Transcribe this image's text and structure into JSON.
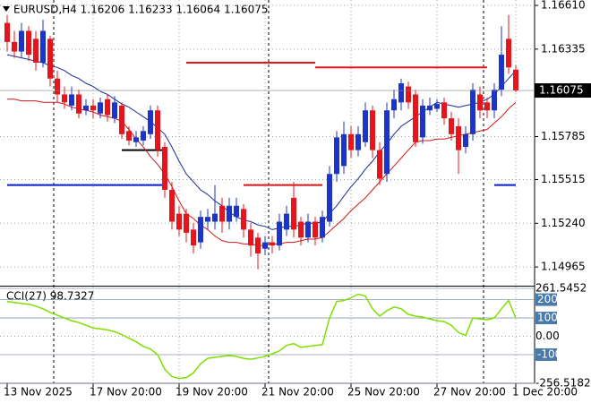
{
  "chart_data": [
    {
      "type": "candlestick",
      "title": "EURUSD,H4  1.16206 1.16233 1.16064 1.16075",
      "categories": [
        "13 Nov 2025",
        null,
        null,
        null,
        null,
        null,
        null,
        null,
        null,
        null,
        null,
        null,
        "17 Nov 20:00",
        null,
        null,
        null,
        null,
        null,
        null,
        null,
        null,
        null,
        null,
        null,
        "19 Nov 20:00",
        null,
        null,
        null,
        null,
        null,
        null,
        null,
        null,
        null,
        null,
        null,
        "21 Nov 20:00",
        null,
        null,
        null,
        null,
        null,
        null,
        null,
        null,
        null,
        null,
        null,
        "25 Nov 20:00",
        null,
        null,
        null,
        null,
        null,
        null,
        null,
        null,
        null,
        null,
        null,
        "27 Nov 20:00",
        null,
        null,
        null,
        null,
        null,
        null,
        null,
        null,
        null,
        null,
        "1 Dec 20:00"
      ],
      "open": [
        1.165,
        1.1638,
        1.1632,
        1.1645,
        1.164,
        1.1625,
        1.164,
        1.1615,
        1.1605,
        1.1598,
        1.1605,
        1.1595,
        1.1598,
        1.1593,
        1.1602,
        1.159,
        1.1598,
        1.1582,
        1.1575,
        1.1576,
        1.158,
        1.1595,
        1.1572,
        1.1545,
        1.153,
        1.153,
        1.152,
        1.1512,
        1.1525,
        1.1525,
        1.1535,
        1.1525,
        1.1528,
        1.1533,
        1.152,
        1.1515,
        1.1508,
        1.1512,
        1.151,
        1.152,
        1.154,
        1.1525,
        1.1515,
        1.1525,
        1.1515,
        1.1525,
        1.1555,
        1.156,
        1.158,
        1.157,
        1.1575,
        1.1595,
        1.157,
        1.1555,
        1.1595,
        1.16,
        1.161,
        1.1605,
        1.1578,
        1.1595,
        1.1596,
        1.16,
        1.159,
        1.1585,
        1.1572,
        1.158,
        1.1605,
        1.16,
        1.1595,
        1.1608,
        1.164,
        1.16206
      ],
      "high": [
        1.1655,
        1.1645,
        1.165,
        1.1648,
        1.1645,
        1.1652,
        1.1642,
        1.162,
        1.161,
        1.161,
        1.1608,
        1.1602,
        1.1602,
        1.1603,
        1.1605,
        1.1604,
        1.16,
        1.1585,
        1.1582,
        1.1585,
        1.1598,
        1.1598,
        1.1575,
        1.155,
        1.1535,
        1.1533,
        1.1524,
        1.1532,
        1.1533,
        1.1548,
        1.154,
        1.154,
        1.154,
        1.1536,
        1.1524,
        1.1518,
        1.1516,
        1.1516,
        1.153,
        1.1535,
        1.155,
        1.1528,
        1.153,
        1.1528,
        1.1532,
        1.156,
        1.1582,
        1.1588,
        1.1585,
        1.1585,
        1.16,
        1.1598,
        1.1575,
        1.16,
        1.1608,
        1.1615,
        1.1613,
        1.1608,
        1.1602,
        1.1603,
        1.1602,
        1.1603,
        1.1594,
        1.159,
        1.1585,
        1.1612,
        1.161,
        1.1603,
        1.1612,
        1.1648,
        1.1655,
        1.16233
      ],
      "low": [
        1.1632,
        1.1628,
        1.1628,
        1.1626,
        1.162,
        1.1622,
        1.161,
        1.16,
        1.1596,
        1.1595,
        1.159,
        1.1592,
        1.159,
        1.159,
        1.1588,
        1.1587,
        1.1577,
        1.1573,
        1.1572,
        1.1573,
        1.1577,
        1.1566,
        1.154,
        1.152,
        1.1516,
        1.1512,
        1.1505,
        1.1508,
        1.152,
        1.152,
        1.1518,
        1.152,
        1.1525,
        1.1515,
        1.1503,
        1.1495,
        1.1504,
        1.1505,
        1.1507,
        1.1516,
        1.1515,
        1.151,
        1.1512,
        1.151,
        1.1512,
        1.1522,
        1.155,
        1.1555,
        1.1565,
        1.1566,
        1.1572,
        1.1565,
        1.1548,
        1.155,
        1.159,
        1.1595,
        1.1596,
        1.1572,
        1.1574,
        1.1592,
        1.1594,
        1.1586,
        1.1576,
        1.1555,
        1.1568,
        1.1576,
        1.159,
        1.159,
        1.159,
        1.1604,
        1.1618,
        1.16064
      ],
      "close": [
        1.1638,
        1.1632,
        1.1645,
        1.163,
        1.1625,
        1.1645,
        1.1615,
        1.1605,
        1.16,
        1.1605,
        1.1593,
        1.1598,
        1.1595,
        1.16,
        1.1592,
        1.16,
        1.158,
        1.1576,
        1.1578,
        1.1582,
        1.1595,
        1.157,
        1.1545,
        1.1525,
        1.152,
        1.1518,
        1.151,
        1.1528,
        1.1528,
        1.153,
        1.1525,
        1.1535,
        1.1535,
        1.152,
        1.151,
        1.1505,
        1.1512,
        1.151,
        1.1525,
        1.153,
        1.152,
        1.1515,
        1.1525,
        1.1515,
        1.1528,
        1.1555,
        1.1578,
        1.158,
        1.157,
        1.158,
        1.1595,
        1.157,
        1.1552,
        1.1595,
        1.1602,
        1.1612,
        1.16,
        1.1575,
        1.1598,
        1.1598,
        1.1599,
        1.159,
        1.158,
        1.157,
        1.158,
        1.1608,
        1.1595,
        1.1595,
        1.1608,
        1.163,
        1.1622,
        1.16075
      ],
      "up_color": "#1c34c8",
      "down_color": "#e8141c",
      "lines": [
        {
          "color": "#1a2a9a",
          "values": [
            1.163,
            1.1629,
            1.1628,
            1.1627,
            1.1626,
            1.1625,
            1.1623,
            1.1622,
            1.162,
            1.1617,
            1.1615,
            1.1612,
            1.161,
            1.1607,
            1.1605,
            1.1602,
            1.1599,
            1.1597,
            1.1594,
            1.1591,
            1.1588,
            1.1584,
            1.158,
            1.1572,
            1.1563,
            1.1555,
            1.155,
            1.1545,
            1.1542,
            1.1538,
            1.1535,
            1.1531,
            1.1528,
            1.1526,
            1.1525,
            1.1523,
            1.1522,
            1.152,
            1.1521,
            1.1522,
            1.1522,
            1.1523,
            1.1524,
            1.1524,
            1.1525,
            1.153,
            1.1535,
            1.1541,
            1.1547,
            1.1552,
            1.1558,
            1.1563,
            1.1569,
            1.1574,
            1.158,
            1.1585,
            1.1588,
            1.1591,
            1.1594,
            1.1597,
            1.16,
            1.1599,
            1.1598,
            1.1597,
            1.1598,
            1.1599,
            1.16,
            1.1602,
            1.1605,
            1.161,
            1.1615,
            1.162
          ]
        },
        {
          "color": "#d01818",
          "values": [
            1.1602,
            1.1602,
            1.1601,
            1.1601,
            1.1601,
            1.16,
            1.16,
            1.16,
            1.1599,
            1.1597,
            1.1596,
            1.1595,
            1.1594,
            1.1592,
            1.1591,
            1.159,
            1.1588,
            1.1583,
            1.1577,
            1.1572,
            1.1566,
            1.1561,
            1.1555,
            1.1547,
            1.1538,
            1.153,
            1.1527,
            1.1523,
            1.152,
            1.1516,
            1.1513,
            1.1512,
            1.1512,
            1.1511,
            1.1511,
            1.151,
            1.151,
            1.1511,
            1.1511,
            1.1512,
            1.1512,
            1.1513,
            1.1514,
            1.1514,
            1.1515,
            1.1519,
            1.1523,
            1.1527,
            1.1532,
            1.1536,
            1.154,
            1.1545,
            1.155,
            1.1555,
            1.156,
            1.1565,
            1.157,
            1.1575,
            1.1576,
            1.1576,
            1.1577,
            1.1577,
            1.1578,
            1.1579,
            1.158,
            1.1581,
            1.1582,
            1.1583,
            1.1587,
            1.1591,
            1.1596,
            1.16
          ]
        }
      ],
      "levels": [
        {
          "value": 1.1548,
          "from": 0,
          "to": 22,
          "color": "#0a1ec8"
        },
        {
          "value": 1.157,
          "from": 16,
          "to": 22,
          "color": "#000000"
        },
        {
          "value": 1.1625,
          "from": 25,
          "to": 43,
          "color": "#e8141c"
        },
        {
          "value": 1.1622,
          "from": 43,
          "to": 67,
          "color": "#e8141c"
        },
        {
          "value": 1.1548,
          "from": 33,
          "to": 44,
          "color": "#d01818"
        },
        {
          "value": 1.1548,
          "from": 68,
          "to": 71,
          "color": "#0a1ec8"
        }
      ],
      "current_price": {
        "value": 1.16075,
        "label": "1.16075"
      },
      "ylim": [
        1.14853,
        1.16644
      ],
      "yticks": [
        {
          "value": 1.1661,
          "label": "1.16610"
        },
        {
          "value": 1.16335,
          "label": "1.16335"
        },
        {
          "value": 1.15785,
          "label": "1.15785"
        },
        {
          "value": 1.15515,
          "label": "1.15515"
        },
        {
          "value": 1.1524,
          "label": "1.15240"
        },
        {
          "value": 1.14965,
          "label": "1.14965"
        }
      ],
      "grid": true
    },
    {
      "type": "line",
      "title": "CCI(27) 98.7327",
      "series": [
        {
          "color": "#7fe000",
          "values": [
            190,
            185,
            180,
            175,
            165,
            150,
            130,
            115,
            100,
            85,
            75,
            60,
            45,
            40,
            35,
            25,
            10,
            -10,
            -30,
            -55,
            -70,
            -100,
            -180,
            -220,
            -230,
            -225,
            -200,
            -150,
            -120,
            -115,
            -110,
            -105,
            -110,
            -120,
            -125,
            -118,
            -110,
            -95,
            -80,
            -50,
            -40,
            -60,
            -55,
            -50,
            -45,
            100,
            190,
            195,
            210,
            230,
            220,
            150,
            110,
            140,
            160,
            150,
            120,
            110,
            105,
            95,
            85,
            80,
            60,
            20,
            5,
            100,
            95,
            90,
            100,
            150,
            195,
            98.7327
          ]
        }
      ],
      "ylim": [
        -256.5182,
        261.5452
      ],
      "yticks": [
        {
          "value": 261.5452,
          "label": "261.5452"
        },
        200,
        100,
        {
          "value": 0,
          "label": "0.00"
        },
        -100,
        {
          "value": -256.5182,
          "label": "-256.5182"
        }
      ],
      "grid": true
    }
  ]
}
